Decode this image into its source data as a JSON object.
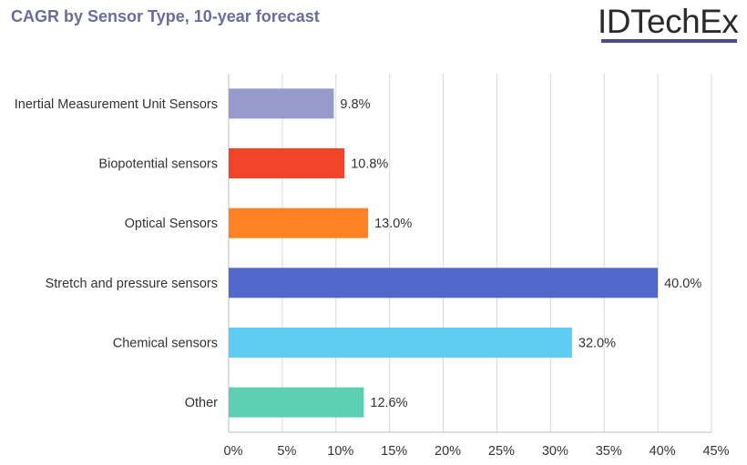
{
  "title": "CAGR by Sensor Type, 10-year forecast",
  "logo_text": "IDTechEx",
  "chart_data": {
    "type": "bar",
    "orientation": "horizontal",
    "categories": [
      "Inertial Measurement Unit Sensors",
      "Biopotential sensors",
      "Optical Sensors",
      "Stretch and pressure sensors",
      "Chemical sensors",
      "Other"
    ],
    "values": [
      9.8,
      10.8,
      13.0,
      40.0,
      32.0,
      12.6
    ],
    "data_labels": [
      "9.8%",
      "10.8%",
      "13.0%",
      "40.0%",
      "32.0%",
      "12.6%"
    ],
    "colors": [
      "#959ccd",
      "#f14428",
      "#fe8223",
      "#5068c9",
      "#5fcdf2",
      "#5dcfb2"
    ],
    "xlim": [
      0,
      45
    ],
    "xticks": [
      0,
      5,
      10,
      15,
      20,
      25,
      30,
      35,
      40,
      45
    ],
    "xtick_labels": [
      "0%",
      "5%",
      "10%",
      "15%",
      "20%",
      "25%",
      "30%",
      "35%",
      "40%",
      "45%"
    ],
    "grid": true,
    "xlabel": "",
    "ylabel": ""
  }
}
